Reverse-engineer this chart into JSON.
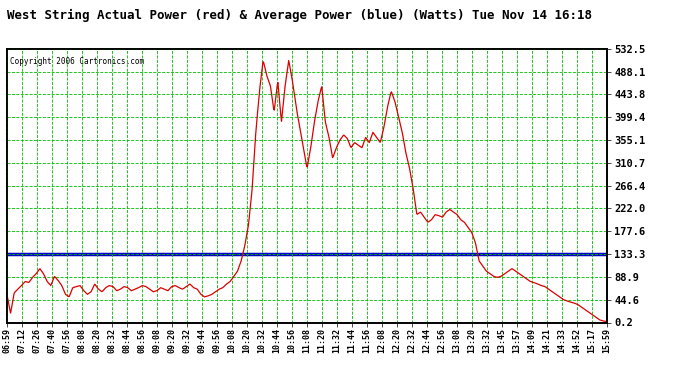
{
  "title": "West String Actual Power (red) & Average Power (blue) (Watts) Tue Nov 14 16:18",
  "copyright": "Copyright 2006 Cartronics.com",
  "yticks": [
    0.2,
    44.6,
    88.9,
    133.3,
    177.6,
    222.0,
    266.4,
    310.7,
    355.1,
    399.4,
    443.8,
    488.1,
    532.5
  ],
  "avg_power": 133.3,
  "ylim_min": 0.2,
  "ylim_max": 532.5,
  "bg_color": "#ffffff",
  "grid_color": "#00bb00",
  "line_color_red": "#dd0000",
  "line_color_blue": "#0000cc",
  "x_labels": [
    "06:59",
    "07:12",
    "07:26",
    "07:40",
    "07:56",
    "08:08",
    "08:20",
    "08:32",
    "08:44",
    "08:56",
    "09:08",
    "09:20",
    "09:32",
    "09:44",
    "09:56",
    "10:08",
    "10:20",
    "10:32",
    "10:44",
    "10:56",
    "11:08",
    "11:20",
    "11:32",
    "11:44",
    "11:56",
    "12:08",
    "12:20",
    "12:32",
    "12:44",
    "12:56",
    "13:08",
    "13:20",
    "13:32",
    "13:45",
    "13:57",
    "14:09",
    "14:21",
    "14:33",
    "14:52",
    "15:17",
    "15:59"
  ],
  "red_y": [
    55,
    18,
    58,
    65,
    72,
    80,
    78,
    88,
    95,
    105,
    95,
    80,
    72,
    90,
    82,
    72,
    55,
    50,
    68,
    70,
    72,
    62,
    55,
    60,
    75,
    65,
    60,
    68,
    72,
    70,
    62,
    65,
    70,
    68,
    62,
    65,
    68,
    72,
    70,
    65,
    60,
    62,
    68,
    65,
    62,
    70,
    72,
    68,
    65,
    70,
    75,
    68,
    65,
    55,
    50,
    52,
    55,
    60,
    65,
    68,
    75,
    80,
    90,
    100,
    120,
    150,
    190,
    260,
    370,
    450,
    510,
    480,
    460,
    410,
    470,
    390,
    460,
    510,
    470,
    420,
    380,
    340,
    300,
    340,
    390,
    430,
    460,
    390,
    360,
    320,
    340,
    355,
    365,
    358,
    340,
    350,
    345,
    340,
    360,
    350,
    370,
    360,
    350,
    380,
    420,
    450,
    430,
    400,
    370,
    330,
    300,
    260,
    210,
    215,
    205,
    195,
    200,
    210,
    208,
    205,
    215,
    220,
    215,
    210,
    200,
    195,
    185,
    175,
    155,
    120,
    110,
    100,
    95,
    90,
    88,
    90,
    95,
    100,
    105,
    100,
    95,
    90,
    85,
    80,
    78,
    75,
    72,
    70,
    65,
    60,
    55,
    50,
    45,
    42,
    40,
    38,
    35,
    30,
    25,
    20,
    15,
    10,
    5,
    3,
    2
  ]
}
